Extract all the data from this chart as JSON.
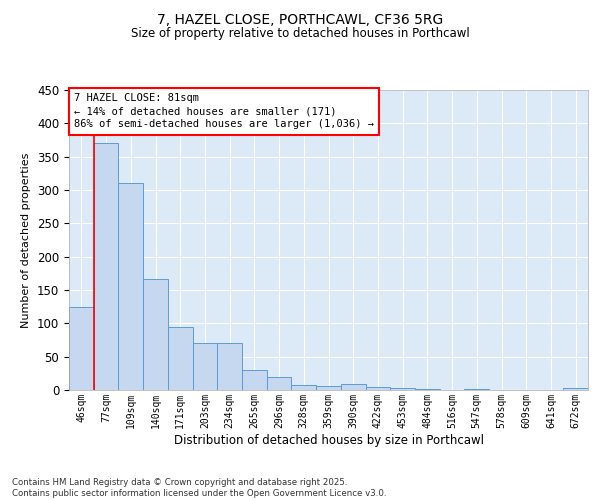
{
  "title1": "7, HAZEL CLOSE, PORTHCAWL, CF36 5RG",
  "title2": "Size of property relative to detached houses in Porthcawl",
  "xlabel": "Distribution of detached houses by size in Porthcawl",
  "ylabel": "Number of detached properties",
  "categories": [
    "46sqm",
    "77sqm",
    "109sqm",
    "140sqm",
    "171sqm",
    "203sqm",
    "234sqm",
    "265sqm",
    "296sqm",
    "328sqm",
    "359sqm",
    "390sqm",
    "422sqm",
    "453sqm",
    "484sqm",
    "516sqm",
    "547sqm",
    "578sqm",
    "609sqm",
    "641sqm",
    "672sqm"
  ],
  "values": [
    125,
    370,
    310,
    167,
    95,
    71,
    71,
    30,
    19,
    8,
    6,
    9,
    5,
    3,
    1,
    0,
    1,
    0,
    0,
    0,
    3
  ],
  "bar_color": "#c5d8f0",
  "bar_edge_color": "#5b9bd5",
  "ylim": [
    0,
    450
  ],
  "yticks": [
    0,
    50,
    100,
    150,
    200,
    250,
    300,
    350,
    400,
    450
  ],
  "annotation_box_text": "7 HAZEL CLOSE: 81sqm\n← 14% of detached houses are smaller (171)\n86% of semi-detached houses are larger (1,036) →",
  "background_color": "#dce9f7",
  "footer_line1": "Contains HM Land Registry data © Crown copyright and database right 2025.",
  "footer_line2": "Contains public sector information licensed under the Open Government Licence v3.0."
}
